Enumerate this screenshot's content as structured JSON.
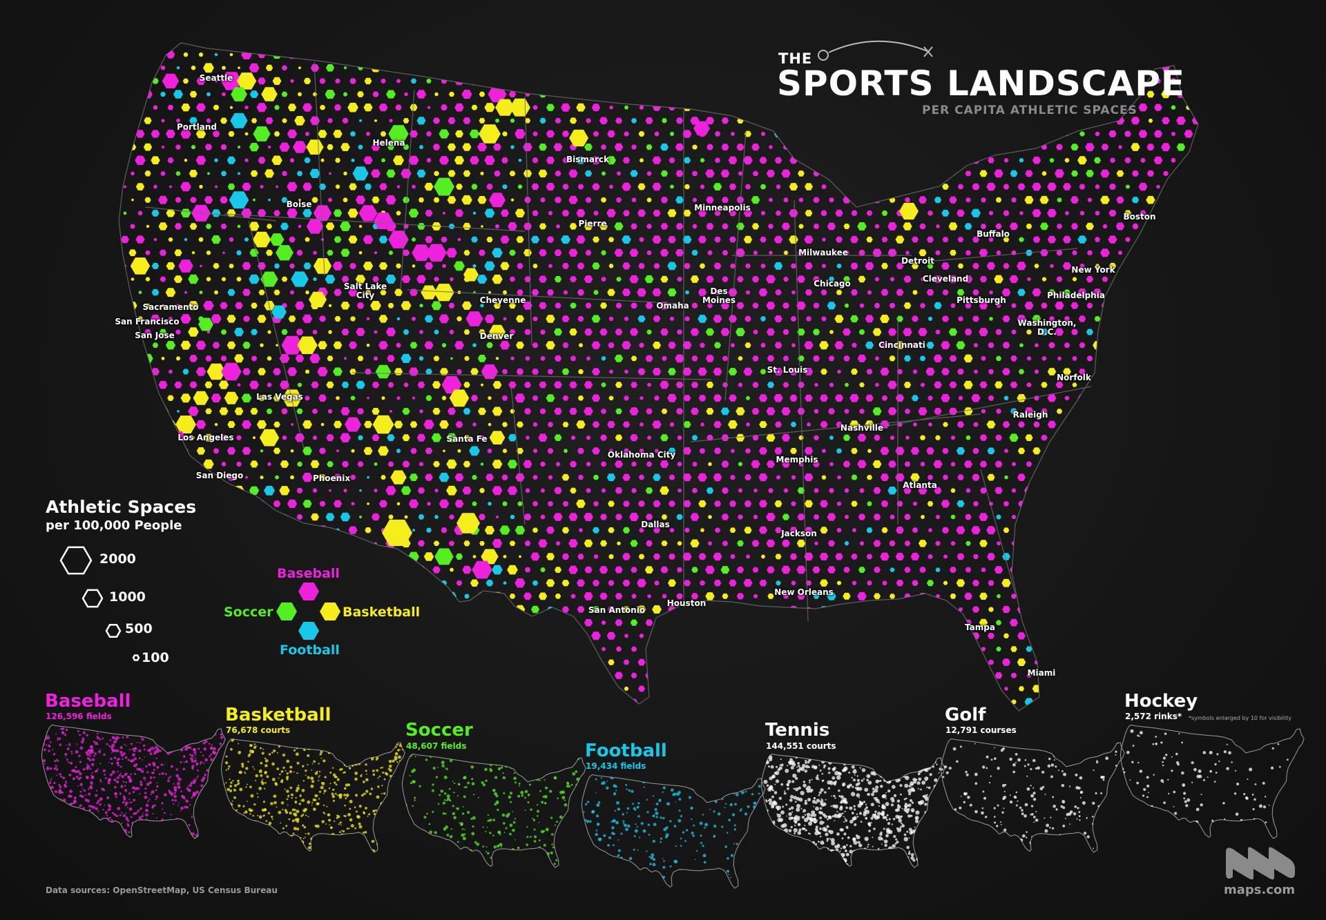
{
  "title": {
    "prefix": "THE",
    "main": "SPORTS LANDSCAPE",
    "subtitle": "PER CAPITA ATHLETIC SPACES"
  },
  "colors": {
    "baseball": "#ee22dd",
    "basketball": "#f5ee1c",
    "soccer": "#55ee22",
    "football": "#19c8e8",
    "white": "#ffffff"
  },
  "cities": [
    {
      "name": "Seattle"
    },
    {
      "name": "Portland"
    },
    {
      "name": "Helena"
    },
    {
      "name": "Boise"
    },
    {
      "name": "Bismarck"
    },
    {
      "name": "Pierre"
    },
    {
      "name": "Minneapolis"
    },
    {
      "name": "Milwaukee"
    },
    {
      "name": "Detroit"
    },
    {
      "name": "Buffalo"
    },
    {
      "name": "Boston"
    },
    {
      "name": "Sacramento"
    },
    {
      "name": "San Francisco"
    },
    {
      "name": "San Jose"
    },
    {
      "name": "Salt Lake City"
    },
    {
      "name": "Cheyenne"
    },
    {
      "name": "Denver"
    },
    {
      "name": "Omaha"
    },
    {
      "name": "Des Moines"
    },
    {
      "name": "Chicago"
    },
    {
      "name": "Cleveland"
    },
    {
      "name": "Pittsburgh"
    },
    {
      "name": "New York"
    },
    {
      "name": "Philadelphia"
    },
    {
      "name": "Washington, D.C."
    },
    {
      "name": "Cincinnati"
    },
    {
      "name": "St. Louis"
    },
    {
      "name": "Las Vegas"
    },
    {
      "name": "Los Angeles"
    },
    {
      "name": "San Diego"
    },
    {
      "name": "Phoenix"
    },
    {
      "name": "Santa Fe"
    },
    {
      "name": "Oklahoma City"
    },
    {
      "name": "Nashville"
    },
    {
      "name": "Memphis"
    },
    {
      "name": "Norfolk"
    },
    {
      "name": "Raleigh"
    },
    {
      "name": "Atlanta"
    },
    {
      "name": "Dallas"
    },
    {
      "name": "Jackson"
    },
    {
      "name": "San Antonio"
    },
    {
      "name": "Houston"
    },
    {
      "name": "New Orleans"
    },
    {
      "name": "Tampa"
    },
    {
      "name": "Miami"
    }
  ],
  "legend": {
    "title": "Athletic Spaces",
    "subtitle": "per 100,000 People",
    "sizes": [
      {
        "label": "2000",
        "value": 2000
      },
      {
        "label": "1000",
        "value": 1000
      },
      {
        "label": "500",
        "value": 500
      },
      {
        "label": "100",
        "value": 100
      }
    ],
    "sports": [
      {
        "label": "Baseball",
        "color": "#ee22dd"
      },
      {
        "label": "Soccer",
        "color": "#55ee22"
      },
      {
        "label": "Basketball",
        "color": "#f5ee1c"
      },
      {
        "label": "Football",
        "color": "#19c8e8"
      }
    ]
  },
  "panels": [
    {
      "name": "Baseball",
      "count": "126,596 fields",
      "color": "#ee22dd"
    },
    {
      "name": "Basketball",
      "count": "76,678 courts",
      "color": "#f5ee1c"
    },
    {
      "name": "Soccer",
      "count": "48,607 fields",
      "color": "#55ee22"
    },
    {
      "name": "Football",
      "count": "19,434 fields",
      "color": "#19c8e8"
    },
    {
      "name": "Tennis",
      "count": "144,551 courts",
      "color": "#ffffff"
    },
    {
      "name": "Golf",
      "count": "12,791 courses",
      "color": "#ffffff"
    },
    {
      "name": "Hockey",
      "count": "2,572 rinks*",
      "color": "#ffffff",
      "footnote": "*symbols enlarged by 10 for visibility"
    }
  ],
  "sources": "Data sources: OpenStreetMap, US Census Bureau",
  "brand": "maps.com"
}
